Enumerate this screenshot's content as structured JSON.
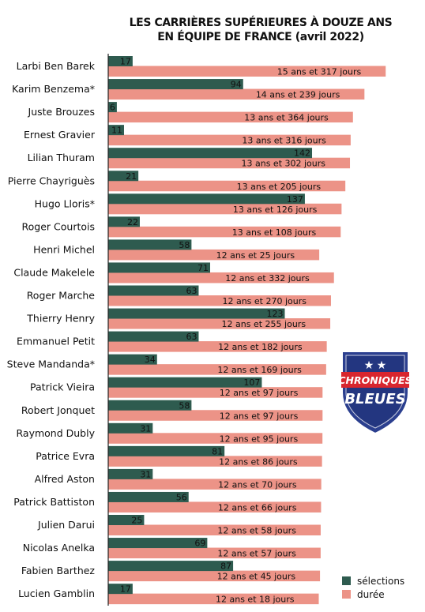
{
  "title_line1": "LES CARRIÈRES SUPÉRIEURES À DOUZE ANS",
  "title_line2": "EN ÉQUIPE DE FRANCE (avril 2022)",
  "colors": {
    "selections": "#2e5b4f",
    "duree": "#ec9387",
    "axis": "#222222"
  },
  "legend": {
    "selections": "sélections",
    "duree": "durée"
  },
  "badge": {
    "line1": "CHRONIQUES",
    "line2": "BLEUES"
  },
  "chart_data": {
    "type": "bar",
    "orientation": "horizontal",
    "categories": [
      "Larbi Ben Barek",
      "Karim Benzema*",
      "Juste Brouzes",
      "Ernest Gravier",
      "Lilian Thuram",
      "Pierre Chayriguès",
      "Hugo Lloris*",
      "Roger Courtois",
      "Henri Michel",
      "Claude Makelele",
      "Roger Marche",
      "Thierry Henry",
      "Emmanuel Petit",
      "Steve Mandanda*",
      "Patrick Vieira",
      "Robert Jonquet",
      "Raymond Dubly",
      "Patrice Evra",
      "Alfred Aston",
      "Patrick Battiston",
      "Julien Darui",
      "Nicolas Anelka",
      "Fabien Barthez",
      "Lucien Gamblin"
    ],
    "series": [
      {
        "name": "sélections",
        "values": [
          17,
          94,
          6,
          11,
          142,
          21,
          137,
          22,
          58,
          71,
          63,
          123,
          63,
          34,
          107,
          58,
          31,
          81,
          31,
          56,
          25,
          69,
          87,
          17
        ]
      },
      {
        "name": "durée",
        "values_days": [
          5796,
          5352,
          5112,
          5064,
          5050,
          4953,
          4874,
          4856,
          4408,
          4715,
          4653,
          4638,
          4565,
          4552,
          4477,
          4477,
          4475,
          4466,
          4450,
          4446,
          4438,
          4437,
          4424,
          4398
        ],
        "labels": [
          "15 ans et 317 jours",
          "14 ans et 239 jours",
          "13 ans et 364 jours",
          "13 ans et 316 jours",
          "13 ans et 302 jours",
          "13 ans et 205 jours",
          "13 ans et 126 jours",
          "13 ans et 108 jours",
          "12 ans et 25 jours",
          "12 ans et 332 jours",
          "12 ans et 270 jours",
          "12 ans et 255 jours",
          "12 ans et 182 jours",
          "12 ans et 169 jours",
          "12 ans et 97 jours",
          "12 ans et 97 jours",
          "12 ans et 95 jours",
          "12 ans et 86 jours",
          "12 ans et 70 jours",
          "12 ans et 66 jours",
          "12 ans et 58 jours",
          "12 ans et 57 jours",
          "12 ans et 45 jours",
          "12 ans et 18 jours"
        ]
      }
    ],
    "xlabel": "",
    "ylabel": "",
    "grid": false,
    "legend_position": "bottom-right"
  }
}
